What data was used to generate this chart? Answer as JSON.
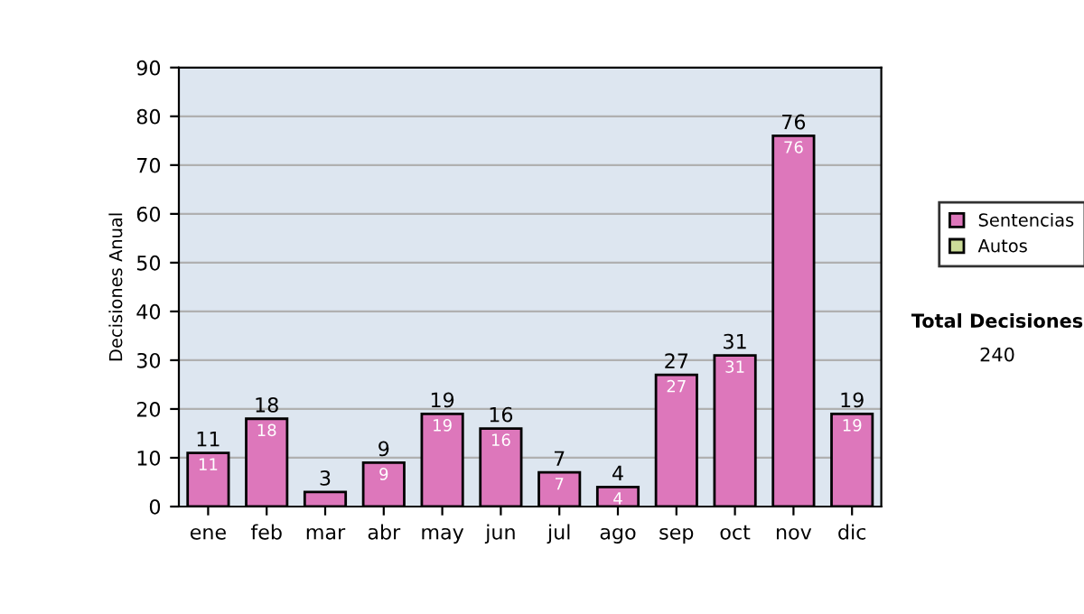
{
  "chart_data": {
    "type": "bar",
    "stacked": true,
    "ylabel": "Decisiones Anual",
    "categories": [
      "ene",
      "feb",
      "mar",
      "abr",
      "may",
      "jun",
      "jul",
      "ago",
      "sep",
      "oct",
      "nov",
      "dic"
    ],
    "series": [
      {
        "name": "Sentencias",
        "color": "#dd77bb",
        "values": [
          11,
          18,
          3,
          9,
          19,
          16,
          7,
          4,
          27,
          31,
          76,
          19
        ],
        "value_labels": [
          "11",
          "18",
          null,
          "9",
          "19",
          "16",
          "7",
          "4",
          "27",
          "31",
          "76",
          "19"
        ]
      },
      {
        "name": "Autos",
        "color": "#ccdd99",
        "values": [
          0,
          0,
          0,
          0,
          0,
          0,
          0,
          0,
          0,
          0,
          0,
          0
        ]
      }
    ],
    "totals": [
      "11",
      "18",
      "3",
      "9",
      "19",
      "16",
      "7",
      "4",
      "27",
      "31",
      "76",
      "19"
    ],
    "ylim": [
      0,
      90
    ],
    "yticks": [
      0,
      10,
      20,
      30,
      40,
      50,
      60,
      70,
      80,
      90
    ],
    "grid": "y",
    "legend": "right",
    "annotations": [
      "Total Decisiones",
      "240"
    ]
  }
}
